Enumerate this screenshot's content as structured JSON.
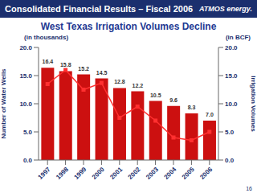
{
  "header": {
    "title": "Consolidated Financial Results – Fiscal 2006",
    "logo": "ATMOS energy.",
    "page_number": "16"
  },
  "chart_data": {
    "type": "bar",
    "title": "West Texas Irrigation Volumes Decline",
    "annotations": [
      "(in thousands)",
      "(in BCF)"
    ],
    "y_label": "Number of Water Wells",
    "y2_label": "Irrigation Volumes",
    "categories": [
      "1997",
      "1998",
      "1999",
      "2000",
      "2001",
      "2002",
      "2003",
      "2004",
      "2005",
      "2006"
    ],
    "ylim": [
      0,
      20
    ],
    "yticks": [
      {
        "value": 0,
        "label": "0.0"
      },
      {
        "value": 5,
        "label": "5.0"
      },
      {
        "value": 10,
        "label": "10.0"
      },
      {
        "value": 15,
        "label": "15.0"
      },
      {
        "value": 20,
        "label": "20.0"
      }
    ],
    "y2lim": [
      0,
      20
    ],
    "y2ticks": [
      {
        "value": 0,
        "label": "0.0"
      },
      {
        "value": 5,
        "label": "5.0"
      },
      {
        "value": 10,
        "label": "10.0"
      },
      {
        "value": 15,
        "label": "15.0"
      },
      {
        "value": 20,
        "label": "20.0"
      }
    ],
    "grid": false,
    "series": [
      {
        "type": "bar",
        "color": "#cc1010",
        "values": [
          16.4,
          15.8,
          15.2,
          14.5,
          12.8,
          12.2,
          10.5,
          9.6,
          8.3,
          7.0
        ],
        "value_labels": [
          "16.4",
          "15.8",
          "15.2",
          "14.5",
          "12.8",
          "12.2",
          "10.5",
          "9.6",
          "8.3",
          "7.0"
        ],
        "data_labels": true
      },
      {
        "type": "line",
        "axis": "y2",
        "color": "#ff3030",
        "marker": "square",
        "line_style": "solid",
        "values": [
          13.5,
          16.0,
          12.5,
          13.7,
          7.5,
          9.5,
          7.0,
          4.0,
          3.5,
          5.0
        ]
      }
    ]
  }
}
